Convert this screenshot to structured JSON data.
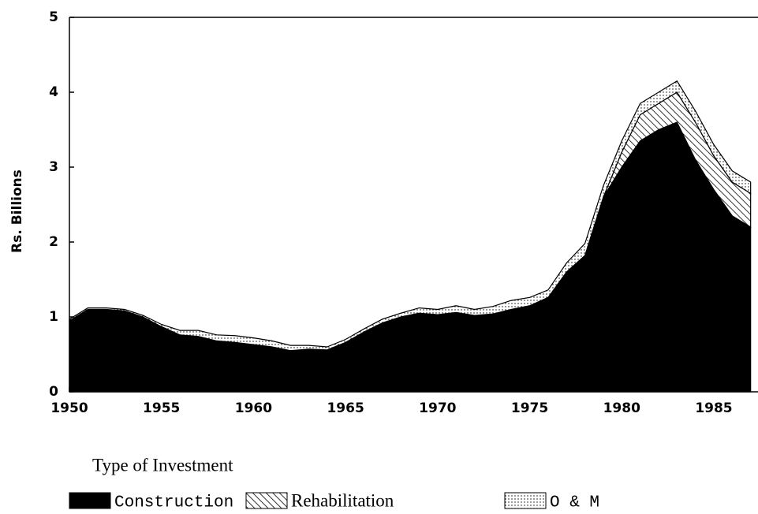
{
  "chart_data": {
    "type": "stacked_area",
    "y_label": "Rs. Billions",
    "legend_title": "Type of Investment",
    "x": [
      1950,
      1951,
      1952,
      1953,
      1954,
      1955,
      1956,
      1957,
      1958,
      1959,
      1960,
      1961,
      1962,
      1963,
      1964,
      1965,
      1966,
      1967,
      1968,
      1969,
      1970,
      1971,
      1972,
      1973,
      1974,
      1975,
      1976,
      1977,
      1978,
      1979,
      1980,
      1981,
      1982,
      1983,
      1984,
      1985,
      1986,
      1987
    ],
    "series": [
      {
        "name": "Construction",
        "color": "#000000",
        "pattern": "solid",
        "values": [
          0.95,
          1.1,
          1.1,
          1.08,
          1.0,
          0.87,
          0.76,
          0.74,
          0.68,
          0.66,
          0.63,
          0.6,
          0.55,
          0.57,
          0.56,
          0.66,
          0.8,
          0.92,
          1.0,
          1.05,
          1.03,
          1.06,
          1.02,
          1.04,
          1.1,
          1.15,
          1.26,
          1.6,
          1.82,
          2.6,
          3.0,
          3.35,
          3.5,
          3.6,
          3.1,
          2.7,
          2.35,
          2.2
        ]
      },
      {
        "name": "Rehabilitation",
        "color": "#000000",
        "pattern": "hatch",
        "values": [
          0,
          0,
          0,
          0,
          0,
          0,
          0,
          0,
          0,
          0,
          0,
          0,
          0,
          0,
          0,
          0,
          0,
          0,
          0,
          0,
          0,
          0,
          0,
          0,
          0,
          0,
          0,
          0,
          0,
          0,
          0.2,
          0.35,
          0.35,
          0.4,
          0.5,
          0.45,
          0.45,
          0.45
        ]
      },
      {
        "name": "O & M",
        "color": "#000000",
        "pattern": "dots",
        "values": [
          0.02,
          0.02,
          0.02,
          0.02,
          0.02,
          0.03,
          0.06,
          0.08,
          0.08,
          0.09,
          0.09,
          0.08,
          0.07,
          0.05,
          0.04,
          0.04,
          0.04,
          0.05,
          0.05,
          0.07,
          0.07,
          0.09,
          0.08,
          0.1,
          0.12,
          0.11,
          0.1,
          0.12,
          0.16,
          0.15,
          0.15,
          0.15,
          0.15,
          0.15,
          0.15,
          0.15,
          0.15,
          0.15
        ]
      }
    ],
    "xlim": [
      1950,
      1987.4
    ],
    "xticks": [
      1950,
      1955,
      1960,
      1965,
      1970,
      1975,
      1980,
      1985
    ],
    "ylim": [
      0,
      5
    ],
    "yticks": [
      0,
      1,
      2,
      3,
      4,
      5
    ]
  }
}
